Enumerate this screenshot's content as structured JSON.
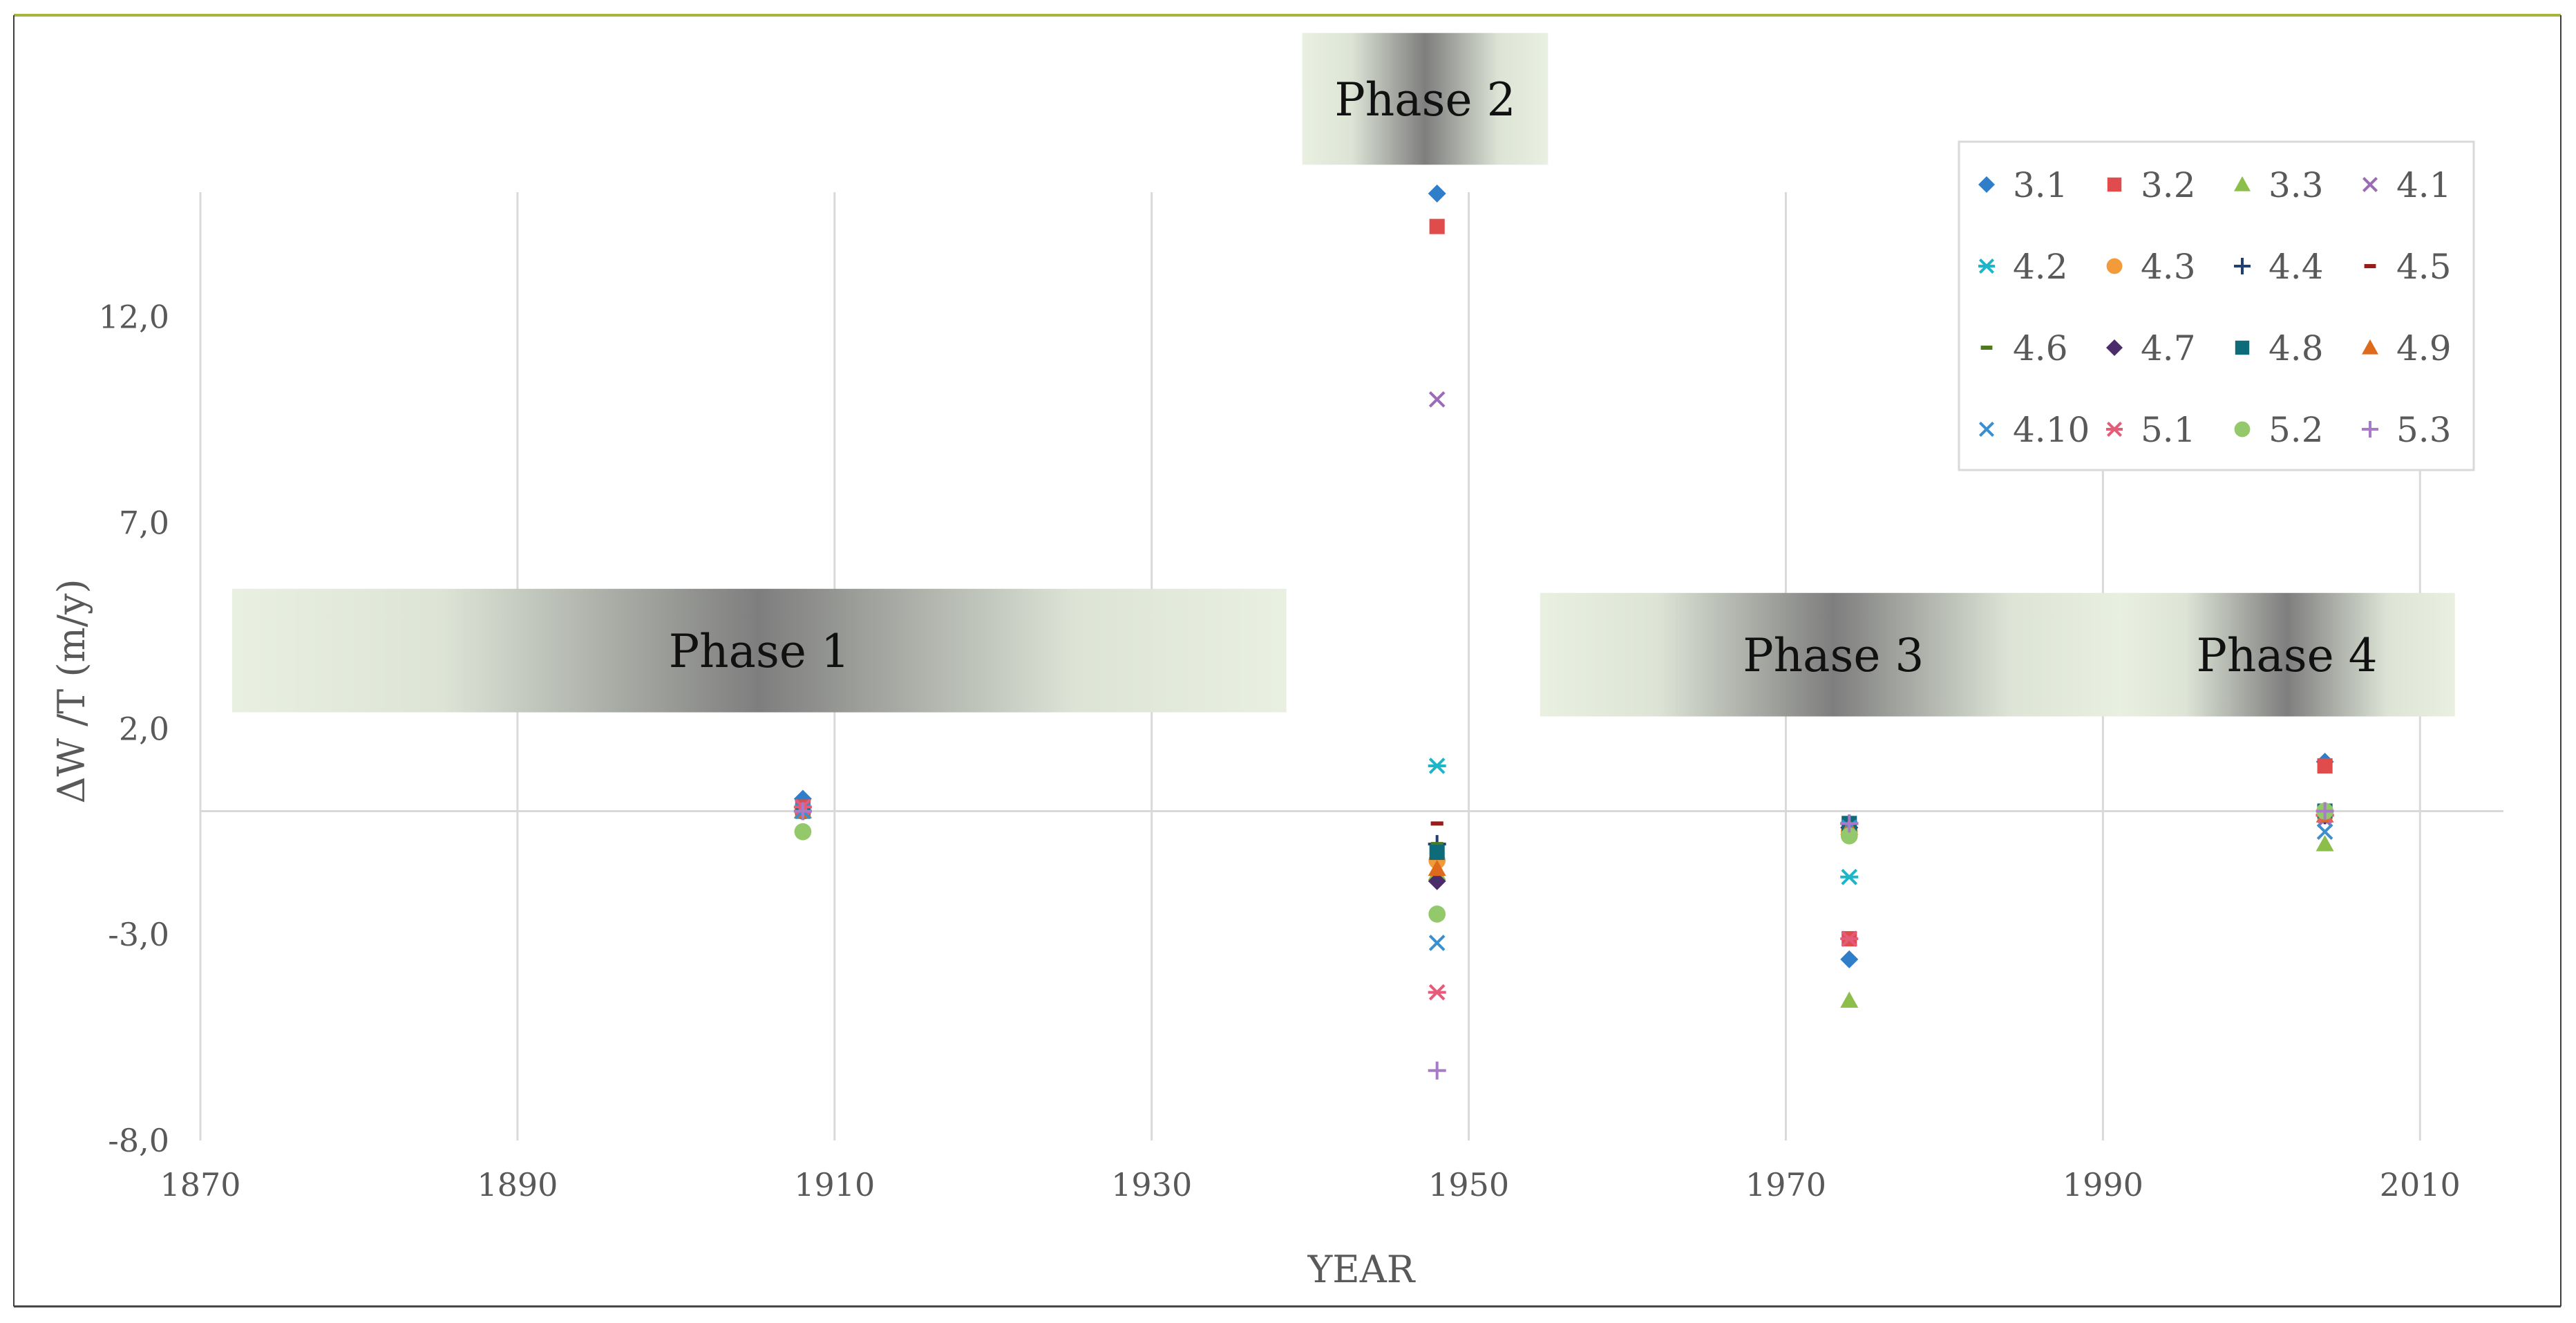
{
  "chart_data": {
    "type": "scatter",
    "title": "",
    "xlabel": "YEAR",
    "ylabel": "ΔW /T (m/y)",
    "xlim": [
      1870,
      2015
    ],
    "ylim": [
      -8,
      15
    ],
    "x_ticks": [
      1870,
      1890,
      1910,
      1930,
      1950,
      1970,
      1990,
      2010
    ],
    "y_ticks": [
      -8,
      -3,
      2,
      7,
      12
    ],
    "x_tick_labels": [
      "1870",
      "1890",
      "1910",
      "1930",
      "1950",
      "1970",
      "1990",
      "2010"
    ],
    "y_tick_labels": [
      "-8,0",
      "-3,0",
      "2,0",
      "7,0",
      "12,0"
    ],
    "grid": "vertical",
    "legend_position": "top-right",
    "phases": [
      {
        "label": "Phase 1",
        "start": 1872,
        "end": 1938.5,
        "y_low": 2.4,
        "y_high": 5.4
      },
      {
        "label": "Phase 2",
        "start": 1939.5,
        "end": 1955,
        "y_low": 15.7,
        "y_high": 18.9
      },
      {
        "label": "Phase 3",
        "start": 1954.5,
        "end": 1991.5,
        "y_low": 2.3,
        "y_high": 5.3
      },
      {
        "label": "Phase 4",
        "start": 1991,
        "end": 2012.2,
        "y_low": 2.3,
        "y_high": 5.3
      }
    ],
    "series": [
      {
        "name": "3.1",
        "marker": "diamond",
        "color": "#2E7EC9",
        "points": [
          [
            1908,
            0.3
          ],
          [
            1948,
            15.0
          ],
          [
            1974,
            -3.6
          ],
          [
            2004,
            1.2
          ]
        ]
      },
      {
        "name": "3.2",
        "marker": "square",
        "color": "#E04B4B",
        "points": [
          [
            1908,
            0.1
          ],
          [
            1948,
            14.2
          ],
          [
            1974,
            -3.1
          ],
          [
            2004,
            1.1
          ]
        ]
      },
      {
        "name": "3.3",
        "marker": "triangle",
        "color": "#8BBE4B",
        "points": [
          [
            1908,
            0.0
          ],
          [
            1948,
            -1.5
          ],
          [
            1974,
            -4.6
          ],
          [
            2004,
            -0.8
          ]
        ]
      },
      {
        "name": "4.1",
        "marker": "x",
        "color": "#9B6BB5",
        "points": [
          [
            1908,
            0.1
          ],
          [
            1948,
            10.0
          ],
          [
            1974,
            -0.4
          ],
          [
            2004,
            -0.2
          ]
        ]
      },
      {
        "name": "4.2",
        "marker": "asterisk",
        "color": "#1EB5C8",
        "points": [
          [
            1908,
            0.1
          ],
          [
            1948,
            1.1
          ],
          [
            1974,
            -1.6
          ],
          [
            2004,
            -0.1
          ]
        ]
      },
      {
        "name": "4.3",
        "marker": "circle",
        "color": "#F39A3B",
        "points": [
          [
            1908,
            0.0
          ],
          [
            1948,
            -1.2
          ],
          [
            1974,
            -0.5
          ],
          [
            2004,
            0.0
          ]
        ]
      },
      {
        "name": "4.4",
        "marker": "plus",
        "color": "#1F3F77",
        "points": [
          [
            1908,
            0.0
          ],
          [
            1948,
            -0.8
          ],
          [
            1974,
            -0.3
          ],
          [
            2004,
            -0.1
          ]
        ]
      },
      {
        "name": "4.5",
        "marker": "dash",
        "color": "#9B1B1B",
        "points": [
          [
            1908,
            0.0
          ],
          [
            1948,
            -0.3
          ],
          [
            1974,
            -0.2
          ],
          [
            2004,
            0.0
          ]
        ]
      },
      {
        "name": "4.6",
        "marker": "dash",
        "color": "#4E7A1E",
        "points": [
          [
            1908,
            0.0
          ],
          [
            1948,
            -0.8
          ],
          [
            1974,
            -0.3
          ],
          [
            2004,
            0.0
          ]
        ]
      },
      {
        "name": "4.7",
        "marker": "diamond",
        "color": "#4B2C6B",
        "points": [
          [
            1908,
            0.0
          ],
          [
            1948,
            -1.7
          ],
          [
            1974,
            -0.4
          ],
          [
            2004,
            -0.1
          ]
        ]
      },
      {
        "name": "4.8",
        "marker": "square",
        "color": "#0E6C7A",
        "points": [
          [
            1908,
            0.0
          ],
          [
            1948,
            -1.0
          ],
          [
            1974,
            -0.3
          ],
          [
            2004,
            0.0
          ]
        ]
      },
      {
        "name": "4.9",
        "marker": "triangle",
        "color": "#E06A1B",
        "points": [
          [
            1908,
            0.0
          ],
          [
            1948,
            -1.4
          ],
          [
            1974,
            -0.4
          ],
          [
            2004,
            -0.1
          ]
        ]
      },
      {
        "name": "4.10",
        "marker": "x",
        "color": "#3A8FD0",
        "points": [
          [
            1908,
            0.0
          ],
          [
            1948,
            -3.2
          ],
          [
            1974,
            -0.4
          ],
          [
            2004,
            -0.5
          ]
        ]
      },
      {
        "name": "5.1",
        "marker": "asterisk",
        "color": "#E35D7A",
        "points": [
          [
            1908,
            0.1
          ],
          [
            1948,
            -4.4
          ],
          [
            1974,
            -3.1
          ],
          [
            2004,
            -0.1
          ]
        ]
      },
      {
        "name": "5.2",
        "marker": "circle",
        "color": "#94C96B",
        "points": [
          [
            1908,
            -0.5
          ],
          [
            1948,
            -2.5
          ],
          [
            1974,
            -0.6
          ],
          [
            2004,
            0.0
          ]
        ]
      },
      {
        "name": "5.3",
        "marker": "plus",
        "color": "#A77BC7",
        "points": [
          [
            1908,
            0.0
          ],
          [
            1948,
            -6.3
          ],
          [
            1974,
            -0.3
          ],
          [
            2004,
            0.0
          ]
        ]
      }
    ]
  }
}
